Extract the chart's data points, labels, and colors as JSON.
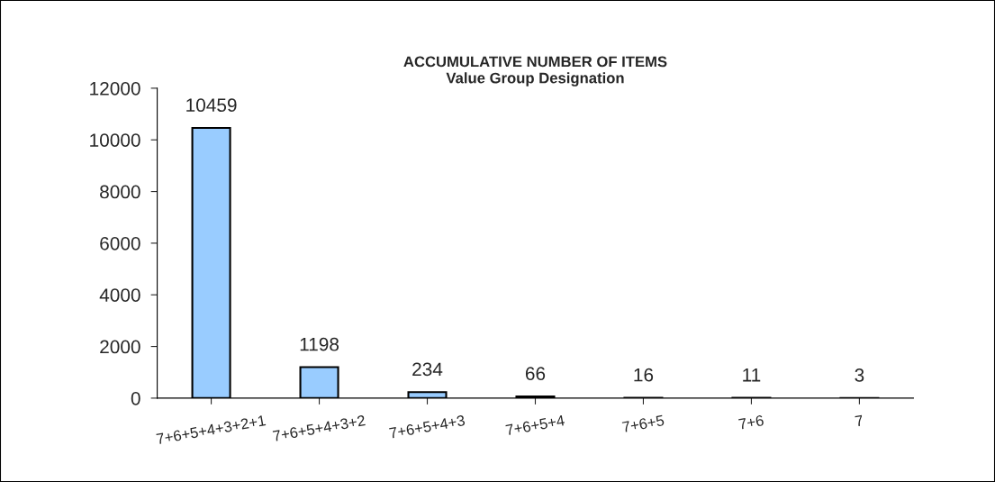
{
  "chart_data": {
    "type": "bar",
    "title": "ACCUMULATIVE NUMBER OF ITEMS",
    "subtitle": "Value Group Designation",
    "categories": [
      "7+6+5+4+3+2+1",
      "7+6+5+4+3+2",
      "7+6+5+4+3",
      "7+6+5+4",
      "7+6+5",
      "7+6",
      "7"
    ],
    "values": [
      10459,
      1198,
      234,
      66,
      16,
      11,
      3
    ],
    "color": "#99ccff",
    "ylim": [
      0,
      12000
    ],
    "yticks": [
      0,
      2000,
      4000,
      6000,
      8000,
      10000,
      12000
    ],
    "grid": false,
    "data_labels": true
  }
}
